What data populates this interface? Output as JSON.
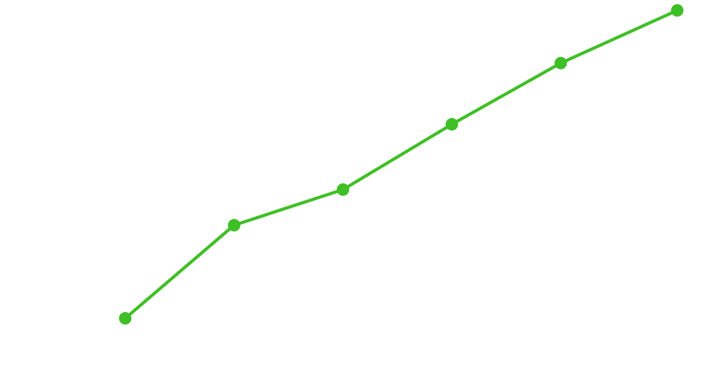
{
  "chart_data": {
    "type": "line",
    "x": [
      1,
      2,
      3,
      4,
      5,
      6.07
    ],
    "series": [
      {
        "color": "#3fbf26",
        "values": [
          14.2,
          39.3,
          48.9,
          66.5,
          83.0,
          97.2
        ]
      }
    ],
    "xlim": [
      -0.15,
      6.38
    ],
    "ylim": [
      0,
      100
    ],
    "grid": false
  }
}
